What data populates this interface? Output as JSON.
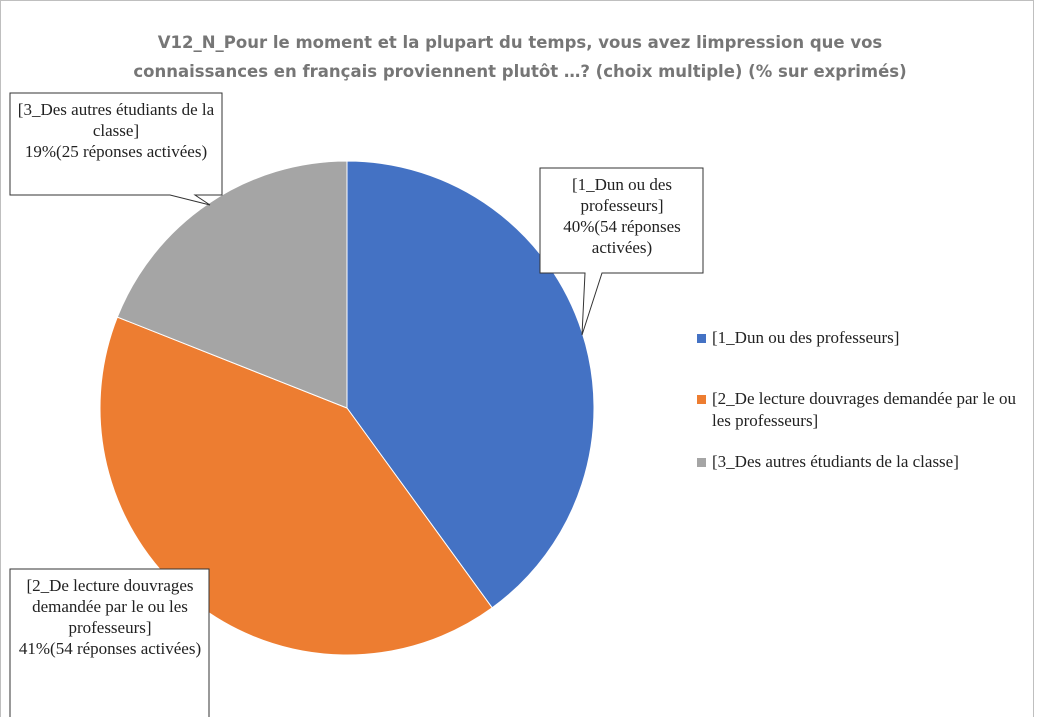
{
  "chart_data": {
    "type": "pie",
    "title": [
      "V12_N_Pour le moment et la plupart du temps, vous avez limpression que vos",
      "connaissances en français proviennent plutôt …? (choix multiple) (% sur exprimés)"
    ],
    "categories": [
      "[1_Dun ou des professeurs]",
      "[2_De lecture douvrages demandée par le ou les professeurs]",
      "[3_Des autres étudiants de la classe]"
    ],
    "values": [
      40,
      41,
      19
    ],
    "value_labels": [
      "40%(54 réponses activées)",
      "41%(54 réponses activées)",
      "19%(25 réponses activées)"
    ],
    "colors": [
      "#4472c4",
      "#ed7d31",
      "#a5a5a5"
    ],
    "legend": "right"
  }
}
